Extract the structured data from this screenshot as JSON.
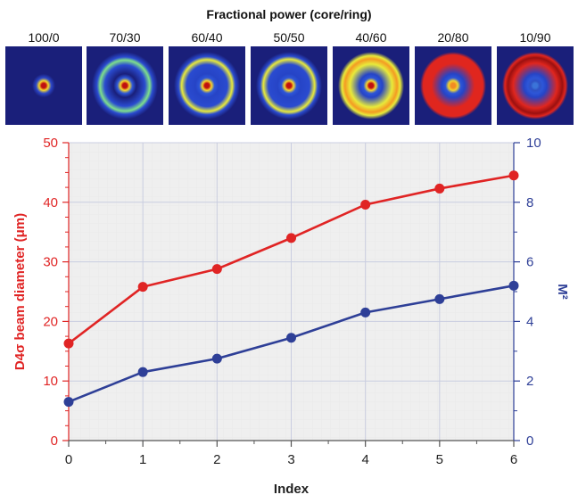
{
  "beam_panel": {
    "title": "Fractional power (core/ring)",
    "profiles": [
      {
        "label": "100/0",
        "ring_fraction": 0.0
      },
      {
        "label": "70/30",
        "ring_fraction": 0.3
      },
      {
        "label": "60/40",
        "ring_fraction": 0.4
      },
      {
        "label": "50/50",
        "ring_fraction": 0.5
      },
      {
        "label": "40/60",
        "ring_fraction": 0.6
      },
      {
        "label": "20/80",
        "ring_fraction": 0.8
      },
      {
        "label": "10/90",
        "ring_fraction": 0.9
      }
    ]
  },
  "chart_data": {
    "type": "line",
    "x": [
      0,
      1,
      2,
      3,
      4,
      5,
      6
    ],
    "xlabel": "Index",
    "xlim": [
      0,
      6
    ],
    "xticks": [
      0,
      1,
      2,
      3,
      4,
      5,
      6
    ],
    "grid": true,
    "series": [
      {
        "axis": "left",
        "color": "#e02424",
        "values": [
          16.3,
          25.8,
          28.8,
          34.0,
          39.6,
          42.3,
          44.5
        ]
      },
      {
        "axis": "right",
        "color": "#2e3f97",
        "values": [
          1.3,
          2.3,
          2.75,
          3.45,
          4.3,
          4.75,
          5.2
        ]
      }
    ],
    "y_left": {
      "label": "D4σ beam diameter (μm)",
      "ylim": [
        0,
        50
      ],
      "ticks": [
        0,
        10,
        20,
        30,
        40,
        50
      ],
      "color": "#e02424"
    },
    "y_right": {
      "label": "M²",
      "ylim": [
        0,
        10
      ],
      "ticks": [
        0,
        2,
        4,
        6,
        8,
        10
      ],
      "color": "#2e3f97"
    }
  }
}
